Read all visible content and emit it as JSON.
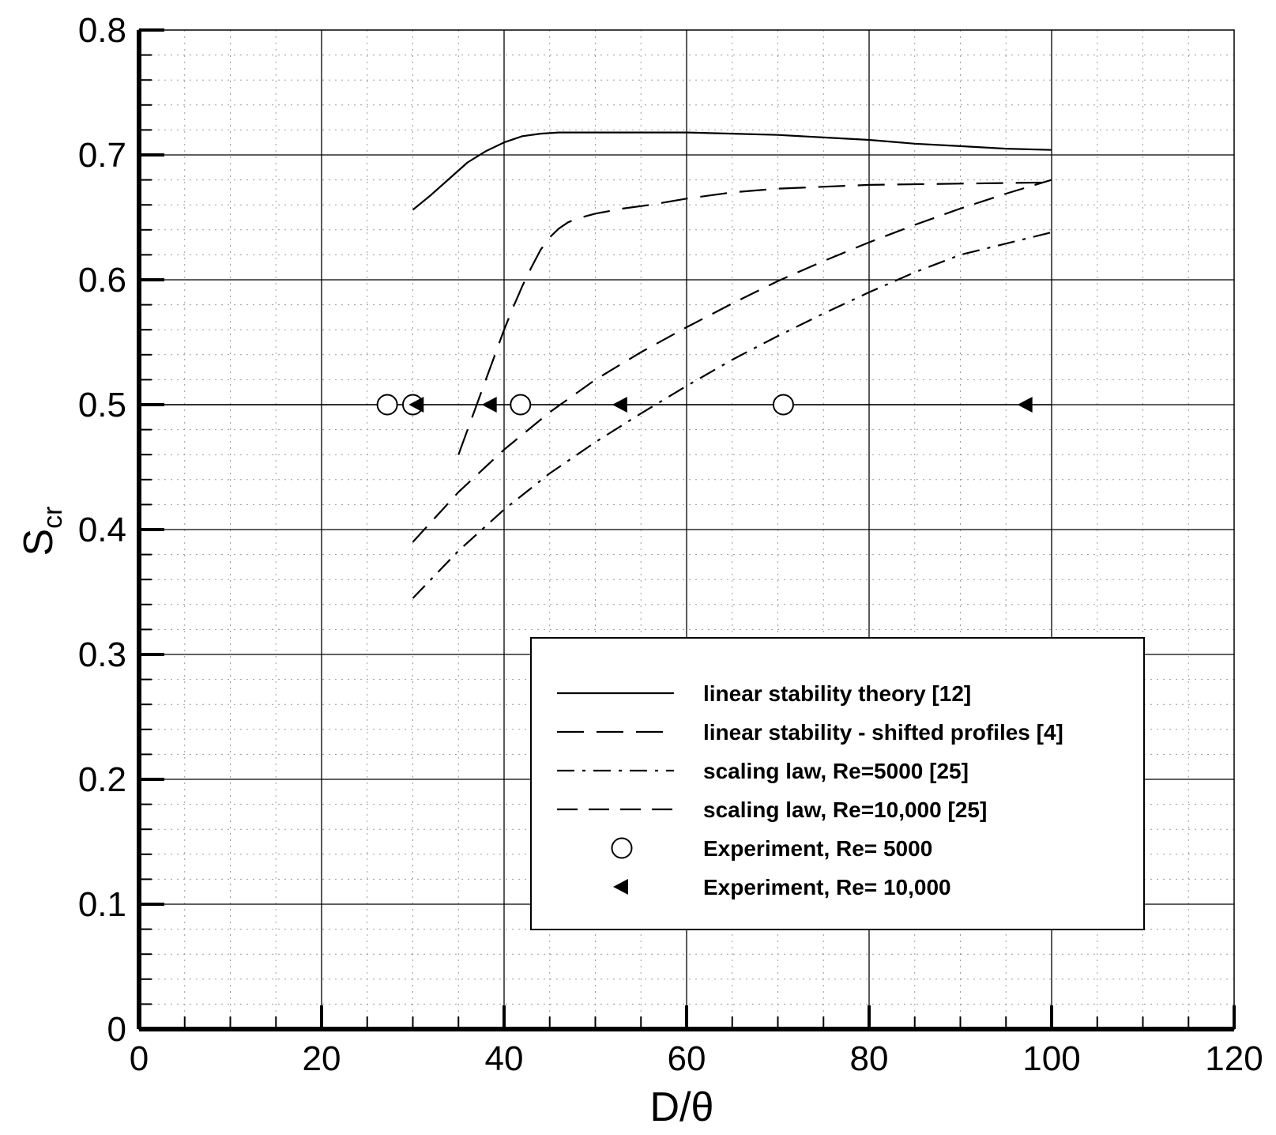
{
  "chart_data": {
    "type": "line",
    "title": "",
    "xlabel": "D/θ",
    "ylabel": {
      "main": "S",
      "sub": "cr"
    },
    "xlim": [
      0,
      120
    ],
    "ylim": [
      0,
      0.8
    ],
    "x_ticks": [
      "0",
      "20",
      "40",
      "60",
      "80",
      "100",
      "120"
    ],
    "y_ticks": [
      "0",
      "0.1",
      "0.2",
      "0.3",
      "0.4",
      "0.5",
      "0.6",
      "0.7",
      "0.8"
    ],
    "grid": "major solid, minor dotted",
    "legend_position": "lower-right",
    "series": [
      {
        "name": "linear stability theory [12]",
        "style": "solid",
        "x": [
          30,
          32,
          34,
          36,
          38,
          40,
          42,
          44,
          46,
          50,
          55,
          60,
          65,
          70,
          75,
          80,
          85,
          90,
          95,
          100
        ],
        "y": [
          0.656,
          0.668,
          0.681,
          0.694,
          0.703,
          0.71,
          0.715,
          0.717,
          0.718,
          0.718,
          0.718,
          0.718,
          0.717,
          0.716,
          0.714,
          0.712,
          0.709,
          0.707,
          0.705,
          0.704
        ]
      },
      {
        "name": "linear stability - shifted profiles [4]",
        "style": "long-dash",
        "x": [
          35,
          36,
          37,
          38,
          39,
          40,
          41,
          42,
          43,
          44,
          45,
          46,
          47,
          48,
          50,
          53,
          56,
          60,
          65,
          70,
          80,
          90,
          100
        ],
        "y": [
          0.46,
          0.48,
          0.5,
          0.52,
          0.54,
          0.56,
          0.578,
          0.595,
          0.61,
          0.624,
          0.634,
          0.641,
          0.646,
          0.649,
          0.653,
          0.657,
          0.66,
          0.665,
          0.67,
          0.673,
          0.676,
          0.677,
          0.678
        ]
      },
      {
        "name": "scaling law, Re=5000 [25]",
        "style": "dash-dot",
        "x": [
          30,
          35,
          40,
          45,
          50,
          55,
          60,
          65,
          70,
          75,
          80,
          85,
          90,
          95,
          100
        ],
        "y": [
          0.345,
          0.383,
          0.416,
          0.445,
          0.47,
          0.493,
          0.515,
          0.536,
          0.555,
          0.573,
          0.59,
          0.606,
          0.62,
          0.629,
          0.638
        ]
      },
      {
        "name": "scaling law, Re=10,000 [25]",
        "style": "dash",
        "x": [
          30,
          35,
          40,
          45,
          50,
          55,
          60,
          65,
          70,
          75,
          80,
          85,
          90,
          95,
          100
        ],
        "y": [
          0.39,
          0.43,
          0.464,
          0.494,
          0.52,
          0.542,
          0.562,
          0.581,
          0.599,
          0.615,
          0.63,
          0.644,
          0.657,
          0.669,
          0.68
        ]
      },
      {
        "name": "Experiment, Re= 5000",
        "style": "marker-circle",
        "x": [
          27.2,
          30.0,
          41.8,
          70.6
        ],
        "y": [
          0.5,
          0.5,
          0.5,
          0.5
        ]
      },
      {
        "name": "Experiment, Re= 10,000",
        "style": "marker-triangle-left",
        "x": [
          30.5,
          38.5,
          52.8,
          97.2
        ],
        "y": [
          0.5,
          0.5,
          0.5,
          0.5
        ]
      }
    ],
    "reference_line": {
      "y": 0.5,
      "x_range": [
        0,
        100
      ]
    }
  }
}
